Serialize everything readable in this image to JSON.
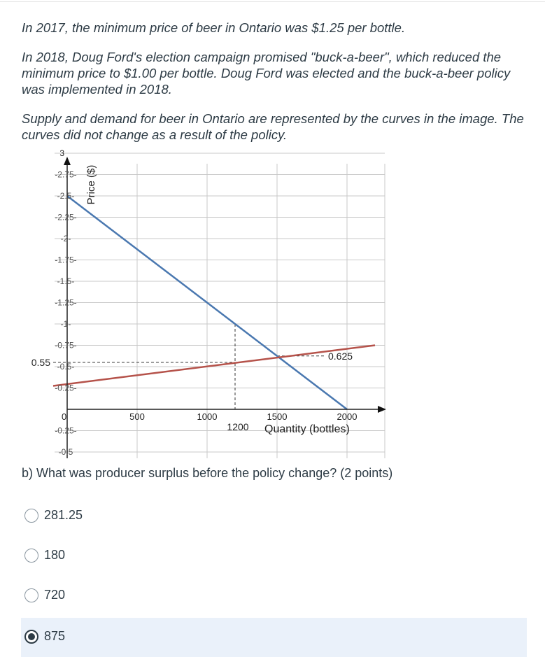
{
  "intro": {
    "p1": "In 2017, the minimum price of beer in Ontario was $1.25 per bottle.",
    "p2": "In 2018, Doug Ford's election campaign promised \"buck-a-beer\", which reduced the minimum price to $1.00 per bottle. Doug Ford was elected and the buck-a-beer policy was implemented in 2018.",
    "p3": "Supply and demand for beer in Ontario are represented by the curves in the image. The curves did not change as a result of the policy."
  },
  "chart_data": {
    "type": "line",
    "xlabel": "Quantity (bottles)",
    "ylabel": "Price ($)",
    "x_ticks": [
      {
        "value": 0,
        "label": "0"
      },
      {
        "value": 500,
        "label": "500"
      },
      {
        "value": 1000,
        "label": "1000"
      },
      {
        "value": 1500,
        "label": "1500"
      },
      {
        "value": 2000,
        "label": "2000"
      }
    ],
    "y_ticks": [
      {
        "value": 3,
        "label": "3"
      },
      {
        "value": 2.75,
        "label": "-2.75-"
      },
      {
        "value": 2.5,
        "label": "-2.5-"
      },
      {
        "value": 2.25,
        "label": "-2.25-"
      },
      {
        "value": 2,
        "label": "-2-"
      },
      {
        "value": 1.75,
        "label": "-1.75-"
      },
      {
        "value": 1.5,
        "label": "-1.5-"
      },
      {
        "value": 1.25,
        "label": "-1.25-"
      },
      {
        "value": 1,
        "label": "-1-"
      },
      {
        "value": 0.75,
        "label": "-0.75-"
      },
      {
        "value": 0.5,
        "label": "-0.5-"
      },
      {
        "value": 0.25,
        "label": "-0.25-"
      },
      {
        "value": -0.25,
        "label": "-0.25-"
      },
      {
        "value": -0.5,
        "label": "-0.5"
      }
    ],
    "xlim": [
      -100,
      2200
    ],
    "ylim": [
      -0.5,
      3
    ],
    "series": [
      {
        "color": "#4a78b0",
        "points": [
          [
            0,
            2.5
          ],
          [
            2000,
            0
          ]
        ]
      },
      {
        "color": "#b5524a",
        "points": [
          [
            -100,
            0.275
          ],
          [
            2200,
            0.75
          ]
        ]
      }
    ],
    "annotations": [
      {
        "text": "0.55",
        "x": -100,
        "y": 0.55
      },
      {
        "text": "0.625",
        "x": 1850,
        "y": 0.625
      },
      {
        "text": "1200",
        "x": 1200,
        "y": -0.1
      }
    ],
    "reference_lines": [
      {
        "from": [
          -100,
          0.55
        ],
        "to": [
          1200,
          0.55
        ]
      },
      {
        "from": [
          1200,
          1.0
        ],
        "to": [
          1200,
          0
        ]
      },
      {
        "from": [
          1500,
          0.625
        ],
        "to": [
          1850,
          0.625
        ]
      }
    ],
    "grid": true
  },
  "question": "b) What was producer surplus before the policy change? (2 points)",
  "options": [
    {
      "label": "281.25",
      "selected": false
    },
    {
      "label": "180",
      "selected": false
    },
    {
      "label": "720",
      "selected": false
    },
    {
      "label": "875",
      "selected": true
    }
  ]
}
